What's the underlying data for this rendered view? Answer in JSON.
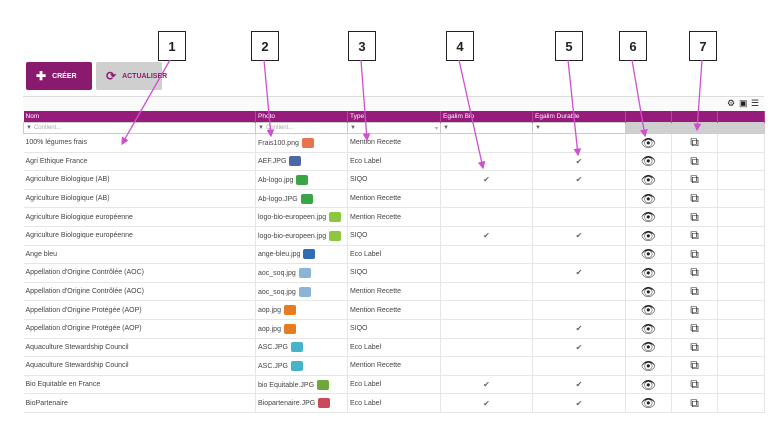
{
  "toolbar": {
    "create_label": "CRÉER",
    "refresh_label": "ACTUALISER"
  },
  "columns": [
    "Nom",
    "Photo",
    "Type",
    "Egalim Bio",
    "Egalim Durable",
    "",
    ""
  ],
  "filters": {
    "nom": "Contient...",
    "photo": "Contient..."
  },
  "callouts": [
    "1",
    "2",
    "3",
    "4",
    "5",
    "6",
    "7"
  ],
  "rows": [
    {
      "nom": "100% légumes frais",
      "photo": "Frais100.png",
      "type": "Mention Recette",
      "bio": "",
      "durable": "",
      "logo": "#e8734f"
    },
    {
      "nom": "Agri Ethique France",
      "photo": "AEF.JPG",
      "type": "Eco Label",
      "bio": "",
      "durable": "✔",
      "logo": "#4b67a8"
    },
    {
      "nom": "Agriculture Biologique (AB)",
      "photo": "Ab-logo.jpg",
      "type": "SIQO",
      "bio": "✔",
      "durable": "✔",
      "logo": "#3aa544"
    },
    {
      "nom": "Agriculture Biologique (AB)",
      "photo": "Ab-logo.JPG",
      "type": "Mention Recette",
      "bio": "",
      "durable": "",
      "logo": "#3aa544"
    },
    {
      "nom": "Agriculture Biologique européenne",
      "photo": "logo-bio-europeen.jpg",
      "type": "Mention Recette",
      "bio": "",
      "durable": "",
      "logo": "#8dc63f"
    },
    {
      "nom": "Agriculture Biologique européenne",
      "photo": "logo-bio-europeen.jpg",
      "type": "SIQO",
      "bio": "✔",
      "durable": "✔",
      "logo": "#8dc63f"
    },
    {
      "nom": "Ange bleu",
      "photo": "ange-bleu.jpg",
      "type": "Eco Label",
      "bio": "",
      "durable": "",
      "logo": "#2f6db3"
    },
    {
      "nom": "Appellation d'Origine Contrôlée (AOC)",
      "photo": "aoc_soq.jpg",
      "type": "SIQO",
      "bio": "",
      "durable": "✔",
      "logo": "#8ab4d8"
    },
    {
      "nom": "Appellation d'Origine Contrôlée (AOC)",
      "photo": "aoc_soq.jpg",
      "type": "Mention Recette",
      "bio": "",
      "durable": "",
      "logo": "#8ab4d8"
    },
    {
      "nom": "Appellation d'Origine Protégée (AOP)",
      "photo": "aop.jpg",
      "type": "Mention Recette",
      "bio": "",
      "durable": "",
      "logo": "#e77b1f"
    },
    {
      "nom": "Appellation d'Origine Protégée (AOP)",
      "photo": "aop.jpg",
      "type": "SIQO",
      "bio": "",
      "durable": "✔",
      "logo": "#e77b1f"
    },
    {
      "nom": "Aquaculture Stewardship Council",
      "photo": "ASC.JPG",
      "type": "Eco Label",
      "bio": "",
      "durable": "✔",
      "logo": "#46b3c8"
    },
    {
      "nom": "Aquaculture Stewardship Council",
      "photo": "ASC.JPG",
      "type": "Mention Recette",
      "bio": "",
      "durable": "",
      "logo": "#46b3c8"
    },
    {
      "nom": "Bio Equitable en France",
      "photo": "bio Equitable.JPG",
      "type": "Eco Label",
      "bio": "✔",
      "durable": "✔",
      "logo": "#6fa83a"
    },
    {
      "nom": "BioPartenaire",
      "photo": "Biopartenaire.JPG",
      "type": "Eco Label",
      "bio": "✔",
      "durable": "✔",
      "logo": "#c94a5b"
    }
  ]
}
